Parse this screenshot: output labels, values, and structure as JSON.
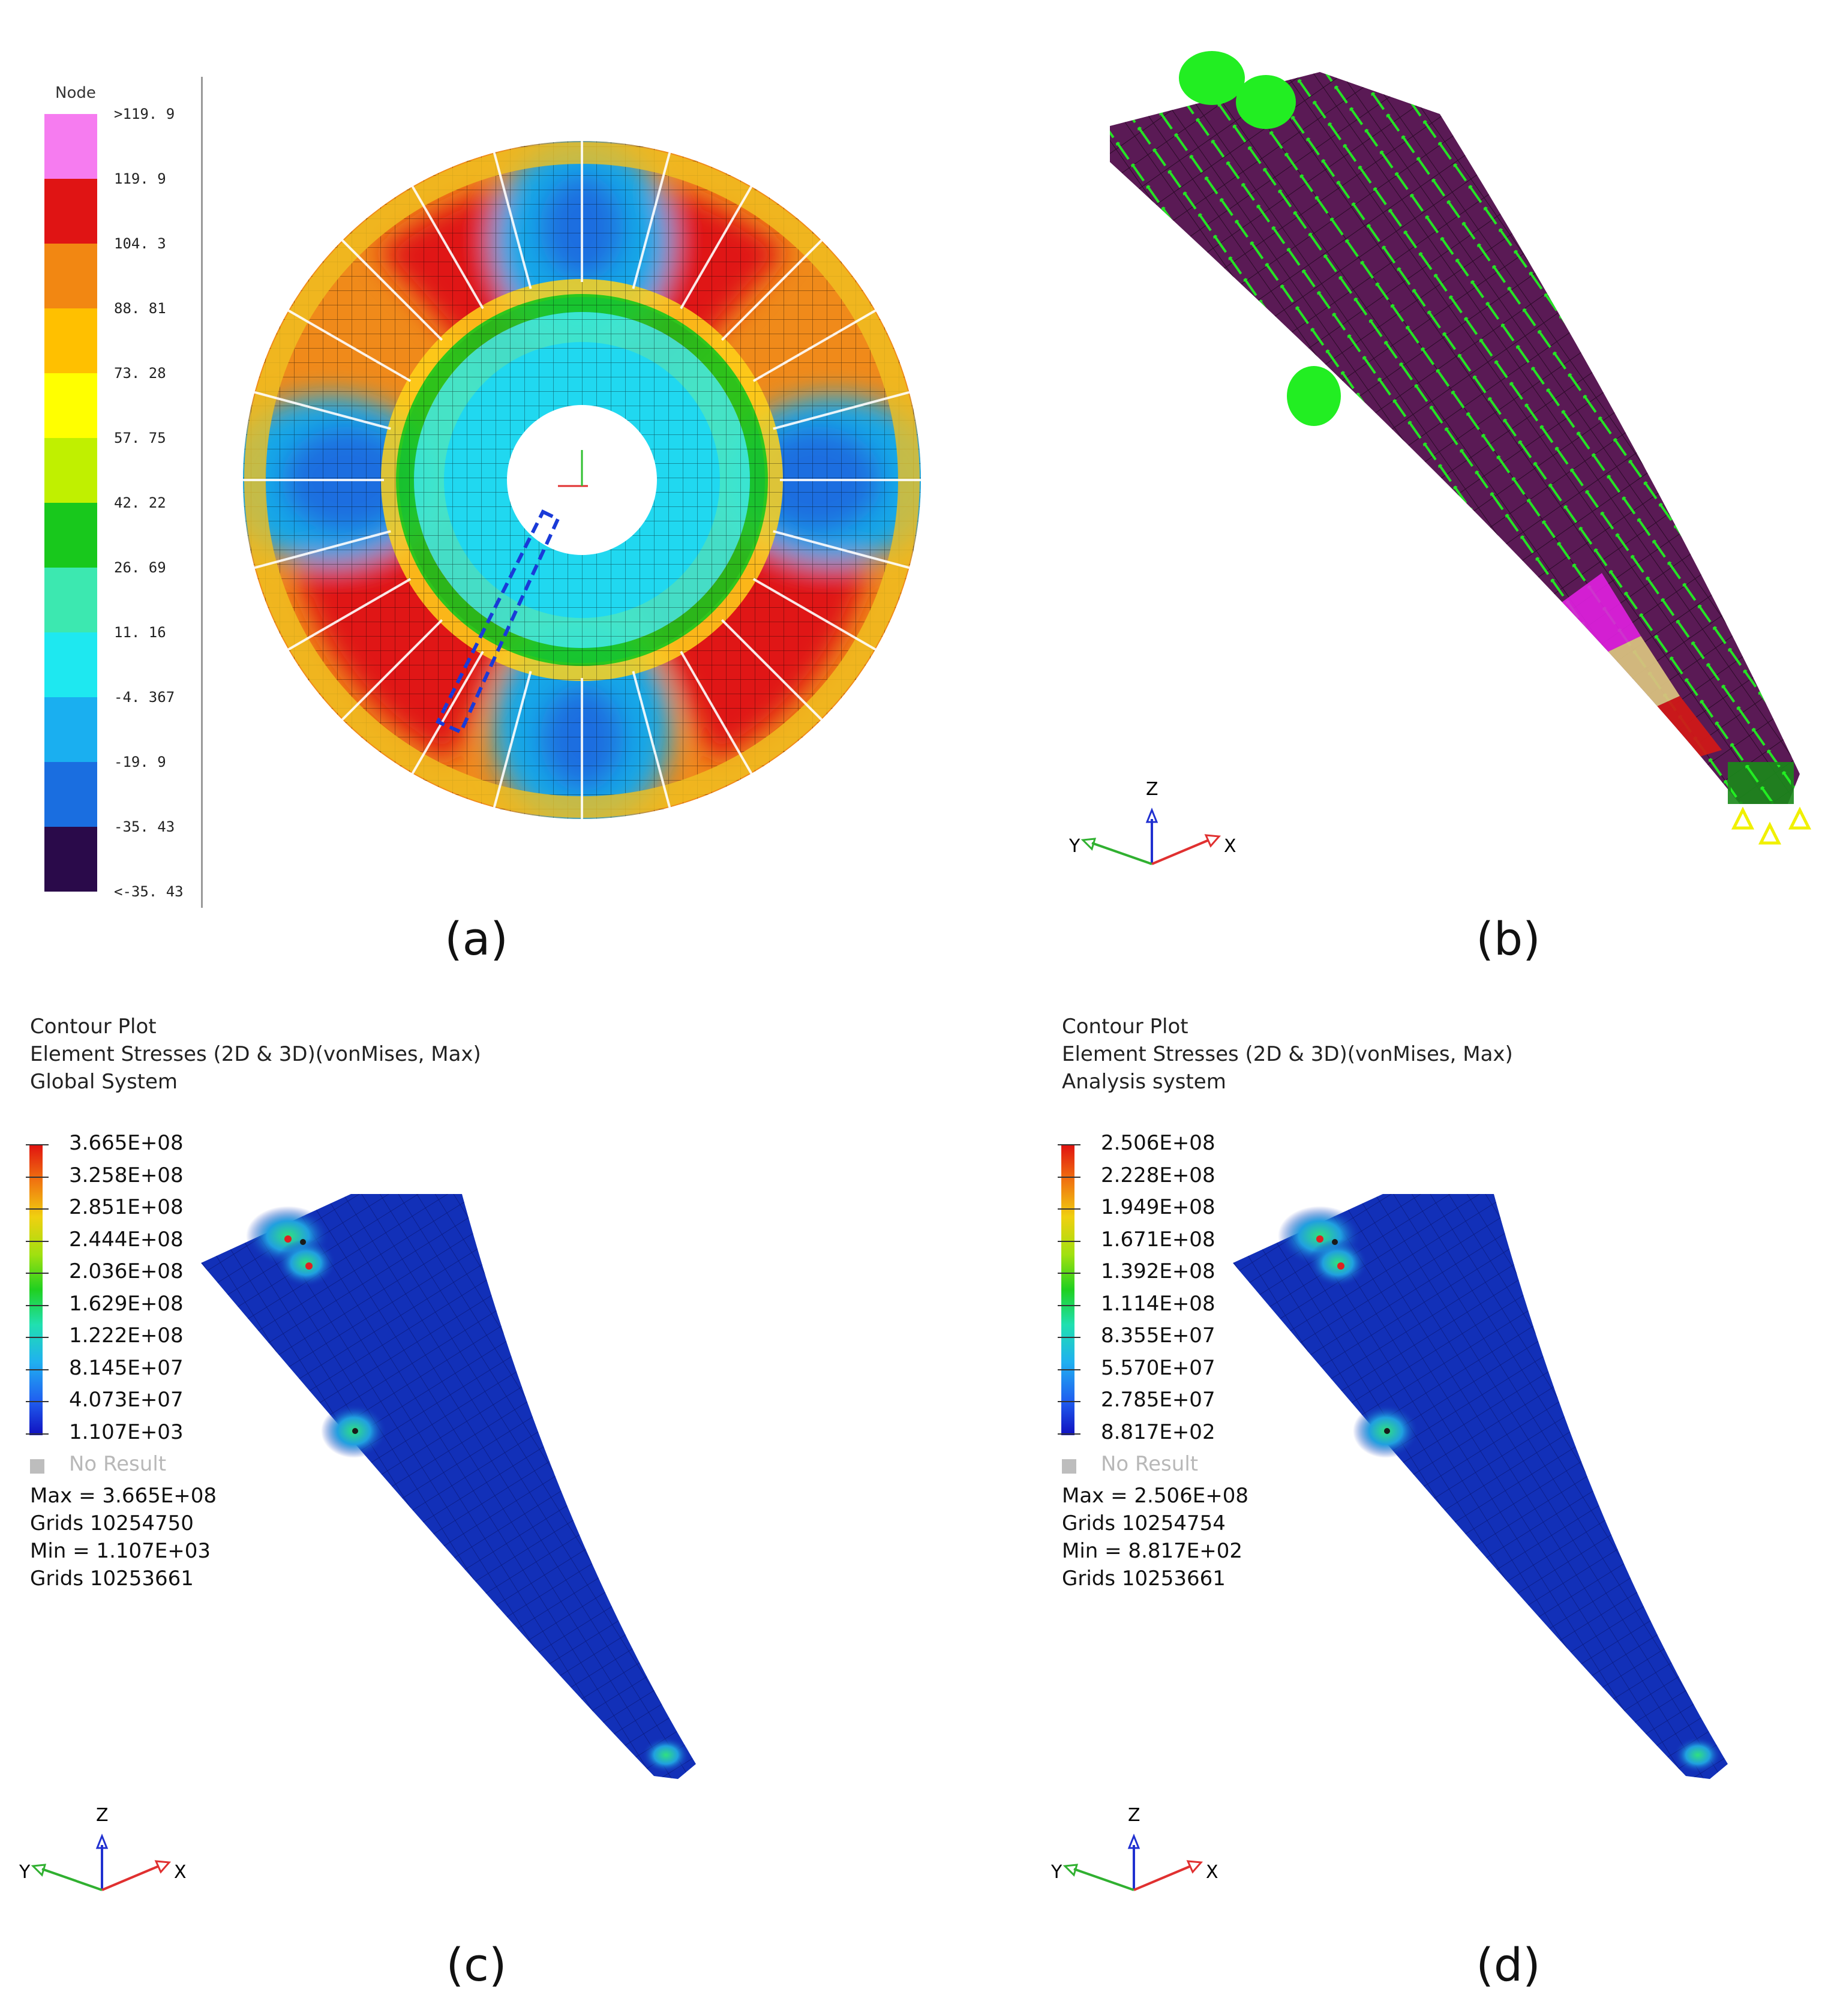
{
  "captions": {
    "a": "(a)",
    "b": "(b)",
    "c": "(c)",
    "d": "(d)"
  },
  "panel_a": {
    "legend_title": "Node",
    "legend_labels": [
      ">119. 9",
      "119. 9",
      "104. 3",
      "88. 81",
      "73. 28",
      "57. 75",
      "42. 22",
      "26. 69",
      "11. 16",
      "-4. 367",
      "-19. 9",
      "-35. 43",
      "<-35. 43"
    ],
    "legend_colors": [
      "#f67cf0",
      "#e01414",
      "#f28712",
      "#ffc000",
      "#ffff00",
      "#c0f000",
      "#18c81c",
      "#3ce8b0",
      "#1ee8f0",
      "#1aaff0",
      "#1a6ee0",
      "#2a0a4a"
    ]
  },
  "panel_b": {
    "triad": {
      "z": "Z",
      "y": "Y",
      "x": "X"
    }
  },
  "panel_c": {
    "header": [
      "Contour Plot",
      "Element Stresses (2D & 3D)(vonMises, Max)",
      "Global System"
    ],
    "legend_labels": [
      "3.665E+08",
      "3.258E+08",
      "2.851E+08",
      "2.444E+08",
      "2.036E+08",
      "1.629E+08",
      "1.222E+08",
      "8.145E+07",
      "4.073E+07",
      "1.107E+03"
    ],
    "no_result": "No Result",
    "info": [
      "Max = 3.665E+08",
      "Grids 10254750",
      "Min = 1.107E+03",
      "Grids 10253661"
    ],
    "triad": {
      "z": "Z",
      "y": "Y",
      "x": "X"
    }
  },
  "panel_d": {
    "header": [
      "Contour Plot",
      "Element Stresses (2D & 3D)(vonMises, Max)",
      "Analysis system"
    ],
    "legend_labels": [
      "2.506E+08",
      "2.228E+08",
      "1.949E+08",
      "1.671E+08",
      "1.392E+08",
      "1.114E+08",
      "8.355E+07",
      "5.570E+07",
      "2.785E+07",
      "8.817E+02"
    ],
    "no_result": "No Result",
    "info": [
      "Max = 2.506E+08",
      "Grids 10254754",
      "Min = 8.817E+02",
      "Grids 10253661"
    ],
    "triad": {
      "z": "Z",
      "y": "Y",
      "x": "X"
    }
  },
  "colors": {
    "blade_blue": "#1230b8",
    "mesh_purple": "#5a1a55",
    "constraint_green": "#22ee22",
    "support_yellow": "#f0f000"
  }
}
